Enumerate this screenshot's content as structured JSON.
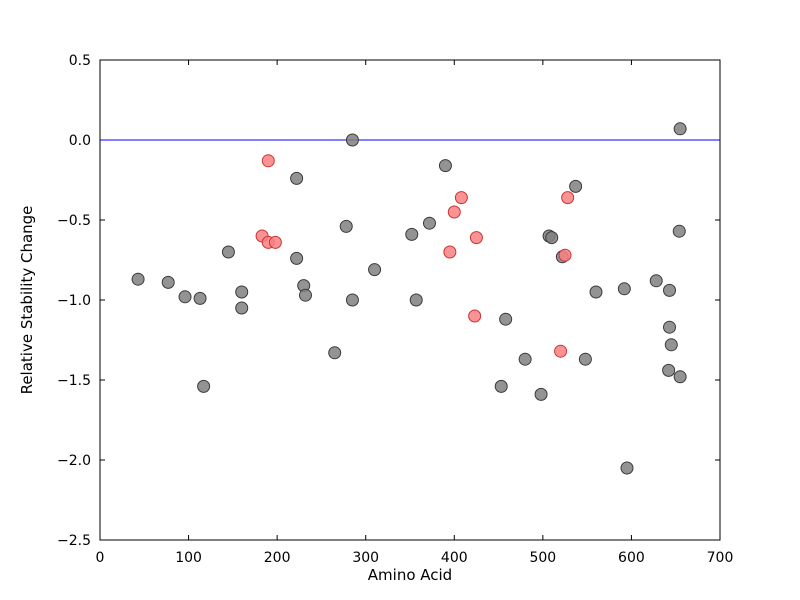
{
  "chart_data": {
    "type": "scatter",
    "title": "",
    "xlabel": "Amino Acid",
    "ylabel": "Relative Stability Change",
    "xlim": [
      0,
      700
    ],
    "ylim": [
      -2.5,
      0.5
    ],
    "grid": false,
    "legend": "none",
    "xticks": [
      0,
      100,
      200,
      300,
      400,
      500,
      600,
      700
    ],
    "xtick_labels": [
      "0",
      "100",
      "200",
      "300",
      "400",
      "500",
      "600",
      "700"
    ],
    "yticks": [
      -2.5,
      -2.0,
      -1.5,
      -1.0,
      -0.5,
      0.0,
      0.5
    ],
    "ytick_labels": [
      "−2.5",
      "−2.0",
      "−1.5",
      "−1.0",
      "−0.5",
      "0.0",
      "0.5"
    ],
    "reference_line": {
      "y": 0.0,
      "color": "#0000ff"
    },
    "marker": {
      "radius": 6,
      "opacity": 0.85
    },
    "series": [
      {
        "name": "gray",
        "color": "#808080",
        "edge_color": "#3a3a3a",
        "points": [
          [
            43,
            -0.87
          ],
          [
            77,
            -0.89
          ],
          [
            96,
            -0.98
          ],
          [
            113,
            -0.99
          ],
          [
            117,
            -1.54
          ],
          [
            145,
            -0.7
          ],
          [
            160,
            -0.95
          ],
          [
            160,
            -1.05
          ],
          [
            222,
            -0.24
          ],
          [
            222,
            -0.74
          ],
          [
            230,
            -0.91
          ],
          [
            232,
            -0.97
          ],
          [
            265,
            -1.33
          ],
          [
            278,
            -0.54
          ],
          [
            285,
            0.0
          ],
          [
            285,
            -1.0
          ],
          [
            310,
            -0.81
          ],
          [
            352,
            -0.59
          ],
          [
            357,
            -1.0
          ],
          [
            372,
            -0.52
          ],
          [
            390,
            -0.16
          ],
          [
            453,
            -1.54
          ],
          [
            458,
            -1.12
          ],
          [
            480,
            -1.37
          ],
          [
            498,
            -1.59
          ],
          [
            507,
            -0.6
          ],
          [
            510,
            -0.61
          ],
          [
            522,
            -0.73
          ],
          [
            537,
            -0.29
          ],
          [
            548,
            -1.37
          ],
          [
            560,
            -0.95
          ],
          [
            592,
            -0.93
          ],
          [
            595,
            -2.05
          ],
          [
            628,
            -0.88
          ],
          [
            643,
            -0.94
          ],
          [
            643,
            -1.17
          ],
          [
            645,
            -1.28
          ],
          [
            642,
            -1.44
          ],
          [
            655,
            -1.48
          ],
          [
            654,
            -0.57
          ],
          [
            655,
            0.07
          ]
        ]
      },
      {
        "name": "red",
        "color": "#f98080",
        "edge_color": "#cc3333",
        "points": [
          [
            190,
            -0.13
          ],
          [
            183,
            -0.6
          ],
          [
            190,
            -0.64
          ],
          [
            198,
            -0.64
          ],
          [
            395,
            -0.7
          ],
          [
            400,
            -0.45
          ],
          [
            408,
            -0.36
          ],
          [
            425,
            -0.61
          ],
          [
            423,
            -1.1
          ],
          [
            525,
            -0.72
          ],
          [
            520,
            -1.32
          ],
          [
            528,
            -0.36
          ]
        ]
      }
    ]
  }
}
